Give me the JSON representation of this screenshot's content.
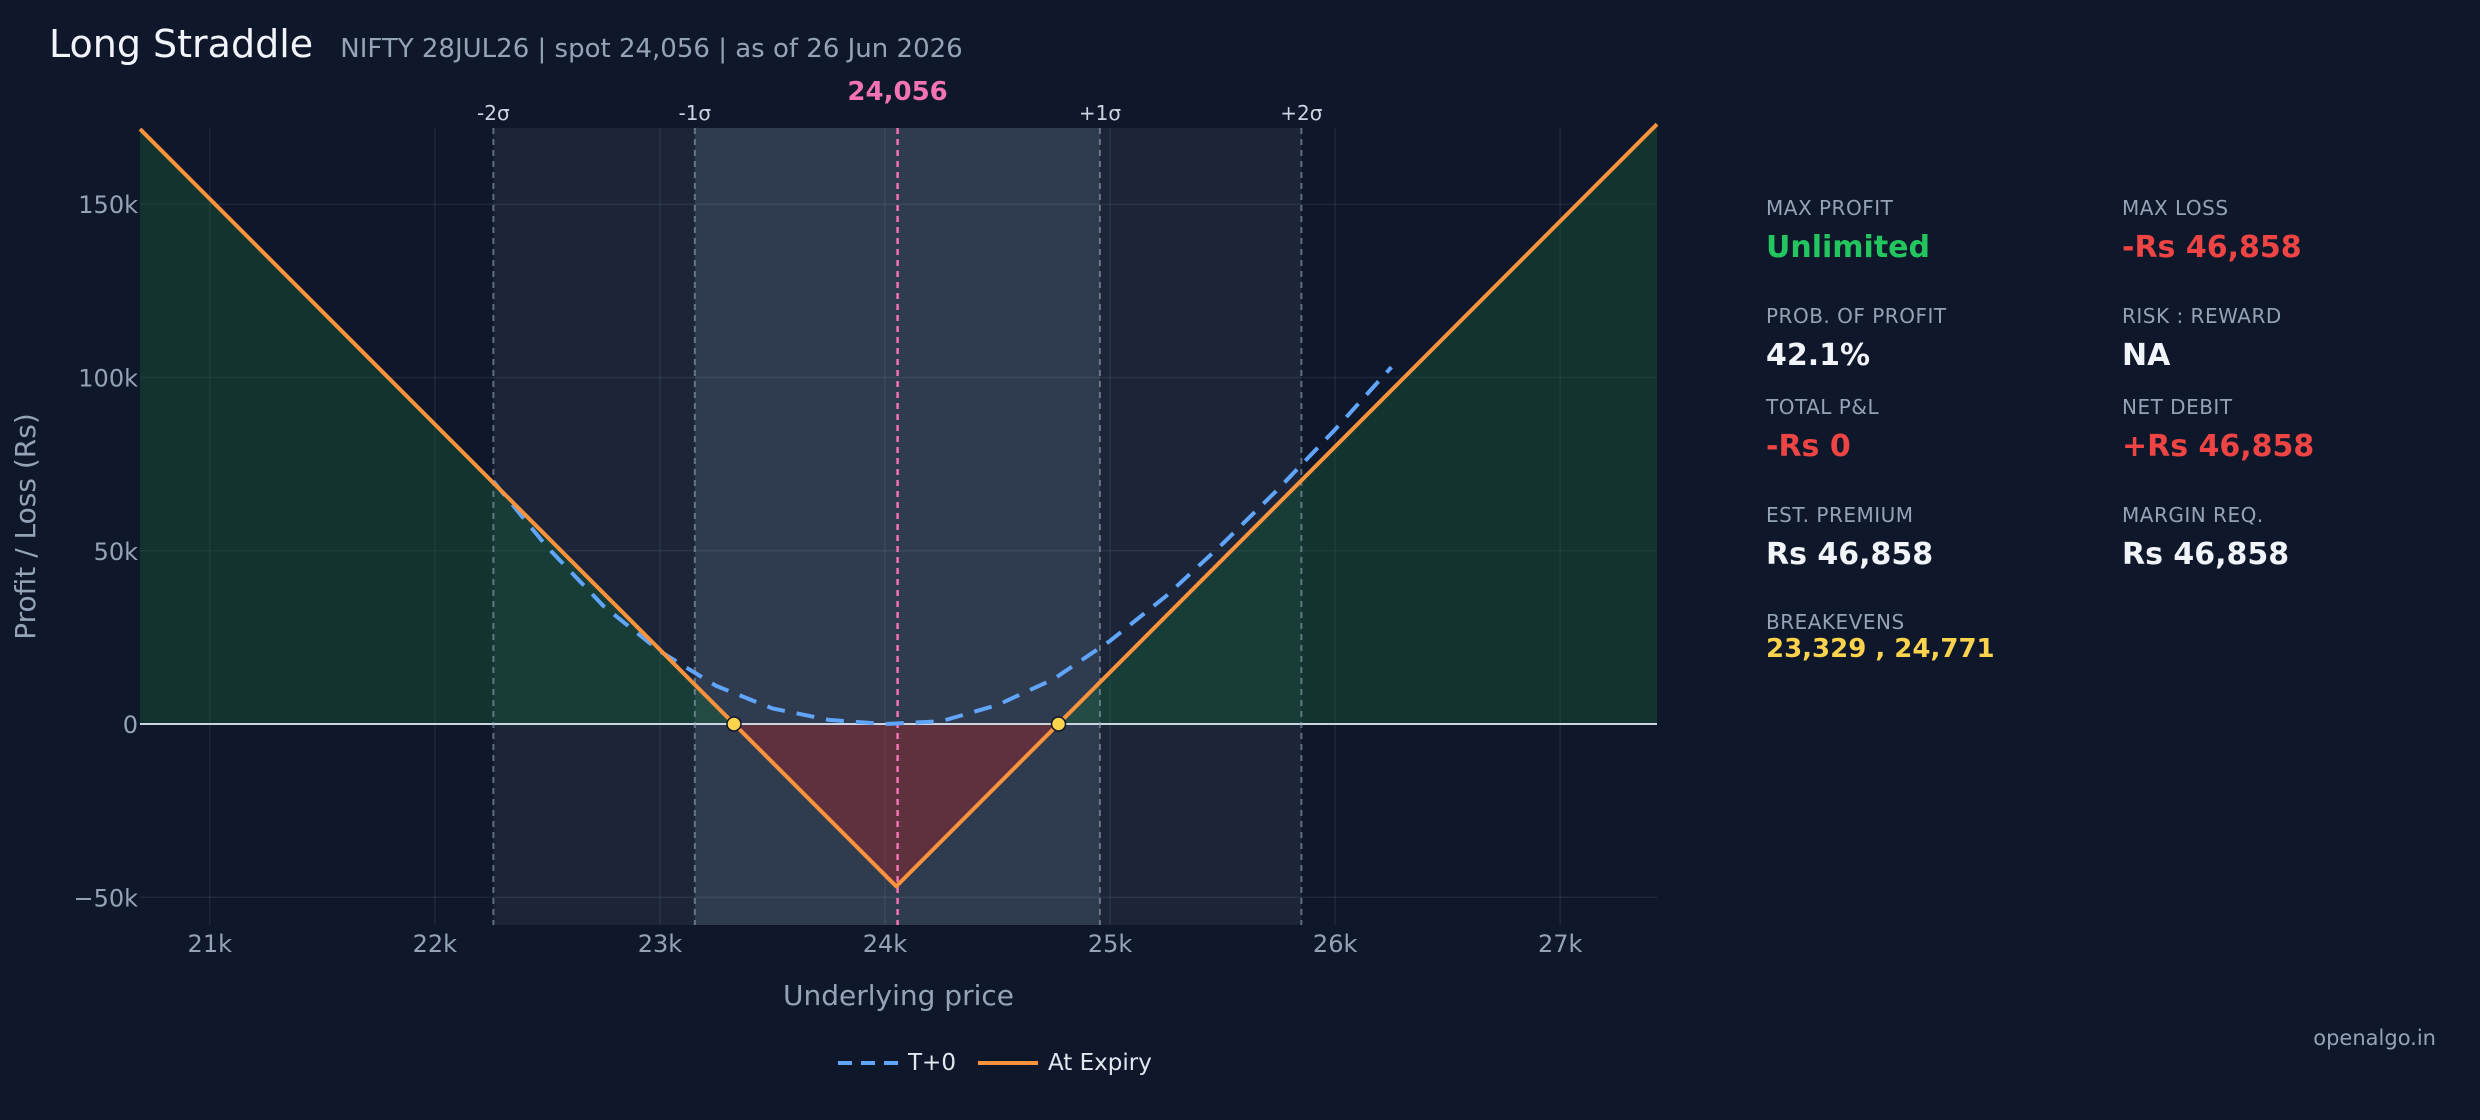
{
  "header": {
    "title": "Long Straddle",
    "subtitle": "NIFTY 28JUL26  |  spot 24,056  |  as of 26 Jun 2026"
  },
  "chart_data": {
    "type": "line",
    "xlabel": "Underlying price",
    "ylabel": "Profit / Loss (Rs)",
    "xlim": [
      20690,
      27430
    ],
    "ylim": [
      -58000,
      172000
    ],
    "x_ticks": [
      21000,
      22000,
      23000,
      24000,
      25000,
      26000,
      27000
    ],
    "x_tick_labels": [
      "21k",
      "22k",
      "23k",
      "24k",
      "25k",
      "26k",
      "27k"
    ],
    "y_ticks": [
      -50000,
      0,
      50000,
      100000,
      150000
    ],
    "y_tick_labels": [
      "−50k",
      "0",
      "50k",
      "100k",
      "150k"
    ],
    "grid": true,
    "legend_position": "bottom-center",
    "spot": {
      "x": 24056,
      "label": "24,056"
    },
    "sigma_bands": [
      {
        "label": "-2σ",
        "x": 22260
      },
      {
        "label": "-1σ",
        "x": 23155
      },
      {
        "label": "+1σ",
        "x": 24955
      },
      {
        "label": "+2σ",
        "x": 25850
      }
    ],
    "breakevens": [
      23329,
      24771
    ],
    "series": [
      {
        "name": "T+0",
        "style": "dashed",
        "color": "#60a5fa",
        "points": [
          [
            22260,
            70000
          ],
          [
            22500,
            51000
          ],
          [
            22750,
            34000
          ],
          [
            23000,
            21000
          ],
          [
            23250,
            11000
          ],
          [
            23500,
            4500
          ],
          [
            23750,
            1200
          ],
          [
            24000,
            0
          ],
          [
            24250,
            800
          ],
          [
            24500,
            5500
          ],
          [
            24750,
            13000
          ],
          [
            25000,
            24000
          ],
          [
            25250,
            37000
          ],
          [
            25500,
            52000
          ],
          [
            25750,
            68000
          ],
          [
            26000,
            85000
          ],
          [
            26250,
            103000
          ]
        ]
      },
      {
        "name": "At Expiry",
        "style": "solid",
        "color": "#fb923c",
        "points": [
          [
            20690,
            171700
          ],
          [
            24050,
            -46858
          ],
          [
            27430,
            173100
          ]
        ]
      }
    ]
  },
  "stats": {
    "max_profit": {
      "label": "MAX PROFIT",
      "value": "Unlimited",
      "color": "#22c55e"
    },
    "max_loss": {
      "label": "MAX LOSS",
      "value": "-Rs 46,858",
      "color": "#ef4444"
    },
    "prob_profit": {
      "label": "PROB. OF PROFIT",
      "value": "42.1%",
      "color": "#f1f5f9"
    },
    "risk_reward": {
      "label": "RISK : REWARD",
      "value": "NA",
      "color": "#f1f5f9"
    },
    "total_pnl": {
      "label": "TOTAL P&L",
      "value": "-Rs 0",
      "color": "#ef4444"
    },
    "net_debit": {
      "label": "NET DEBIT",
      "value": "+Rs 46,858",
      "color": "#ef4444"
    },
    "est_premium": {
      "label": "EST. PREMIUM",
      "value": "Rs 46,858",
      "color": "#f1f5f9"
    },
    "margin_req": {
      "label": "MARGIN REQ.",
      "value": "Rs 46,858",
      "color": "#f1f5f9"
    },
    "breakevens": {
      "label": "BREAKEVENS",
      "value": "23,329 , 24,771",
      "color": "#fcd34d"
    }
  },
  "footer": {
    "brand": "openalgo.in"
  }
}
